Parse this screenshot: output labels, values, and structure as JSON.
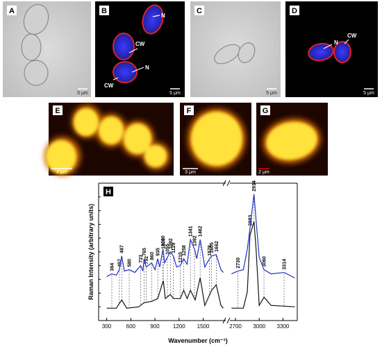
{
  "images": [
    {
      "label": "A",
      "scale_bar": "5 μm"
    },
    {
      "label": "B",
      "scale_bar": "5 μm",
      "annotations": [
        "N",
        "CW",
        "N",
        "CW"
      ]
    },
    {
      "label": "C",
      "scale_bar": "5 μm"
    },
    {
      "label": "D",
      "scale_bar": "5 μm",
      "annotations": [
        "N",
        "CW"
      ]
    },
    {
      "label": "E",
      "scale_bar": "2 μm"
    },
    {
      "label": "F",
      "scale_bar": "3 μm"
    },
    {
      "label": "G",
      "scale_bar": "2 μm"
    }
  ],
  "chart_data": {
    "type": "line",
    "panel_label": "H",
    "xlabel": "Wavenumber (cm⁻¹)",
    "ylabel": "Raman Intensity (arbitrary units)",
    "x_segments": [
      [
        200,
        1780
      ],
      [
        2630,
        3480
      ]
    ],
    "ylim": [
      0,
      100
    ],
    "xticks": [
      300,
      600,
      900,
      1200,
      1500,
      2700,
      3000,
      3300
    ],
    "peaks": [
      364,
      457,
      487,
      580,
      723,
      765,
      792,
      860,
      935,
      1000,
      1004,
      1055,
      1092,
      1129,
      1215,
      1258,
      1341,
      1392,
      1462,
      1578,
      1605,
      1662,
      2730,
      2883,
      2934,
      3060,
      3314
    ],
    "series": [
      {
        "color": "#1f2fbf",
        "x": [
          300,
          364,
          420,
          457,
          487,
          520,
          580,
          650,
          723,
          750,
          765,
          792,
          860,
          900,
          935,
          960,
          1000,
          1020,
          1055,
          1092,
          1129,
          1170,
          1215,
          1258,
          1300,
          1341,
          1392,
          1420,
          1462,
          1520,
          1578,
          1605,
          1662,
          1720,
          1750,
          null,
          2650,
          2730,
          2800,
          2850,
          2883,
          2934,
          2960,
          3000,
          3060,
          3150,
          3314,
          3450
        ],
        "values": [
          32,
          34,
          33,
          37,
          47,
          36,
          37,
          35,
          40,
          36,
          45,
          39,
          42,
          37,
          45,
          39,
          52,
          42,
          46,
          50,
          47,
          39,
          40,
          45,
          41,
          59,
          52,
          45,
          59,
          39,
          45,
          47,
          48,
          37,
          35,
          null,
          34,
          36,
          37,
          52,
          67,
          92,
          73,
          46,
          37,
          34,
          35,
          31
        ]
      },
      {
        "color": "#111111",
        "x": [
          300,
          420,
          487,
          550,
          700,
          765,
          860,
          935,
          1004,
          1030,
          1092,
          1129,
          1215,
          1258,
          1300,
          1341,
          1400,
          1462,
          1520,
          1605,
          1662,
          1720,
          1750,
          null,
          2650,
          2800,
          2850,
          2883,
          2934,
          2960,
          3000,
          3060,
          3150,
          3450
        ],
        "values": [
          9,
          9,
          15,
          9,
          10,
          13,
          14,
          16,
          29,
          16,
          19,
          16,
          16,
          22,
          16,
          22,
          15,
          31,
          11,
          22,
          26,
          11,
          9,
          null,
          9,
          9,
          21,
          62,
          72,
          52,
          11,
          17,
          11,
          10
        ]
      }
    ]
  }
}
